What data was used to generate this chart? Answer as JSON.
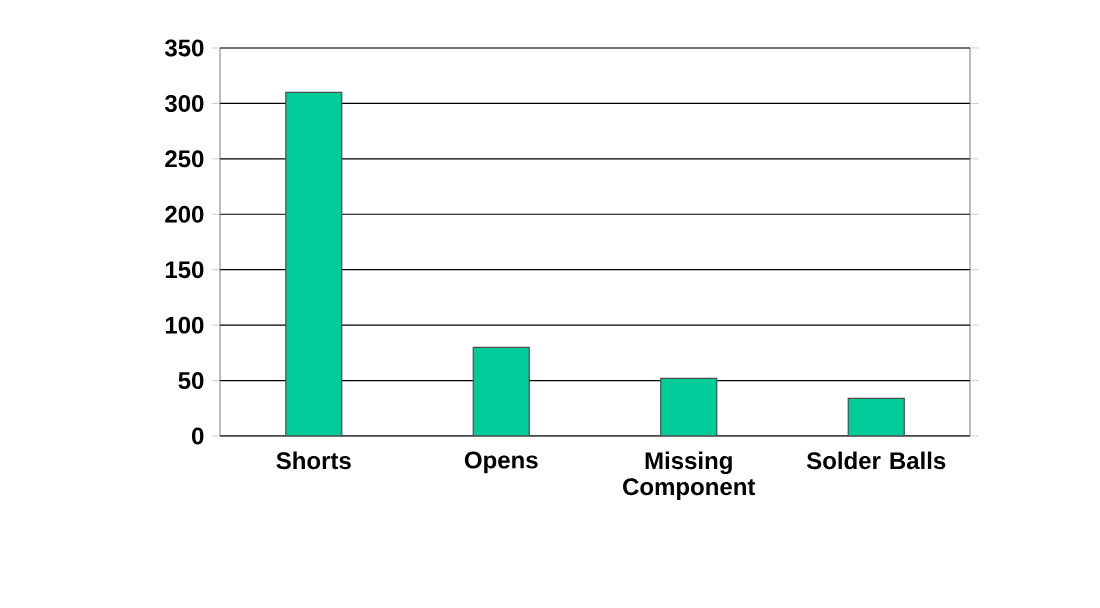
{
  "chart_data": {
    "type": "bar",
    "categories": [
      "Shorts",
      "Opens",
      "Missing Component",
      "Solder Balls"
    ],
    "values": [
      310,
      80,
      52,
      34
    ],
    "color": "#00cc99",
    "ylim": [
      0,
      350
    ],
    "yticks": [
      0,
      50,
      100,
      150,
      200,
      250,
      300,
      350
    ],
    "grid": "y"
  }
}
